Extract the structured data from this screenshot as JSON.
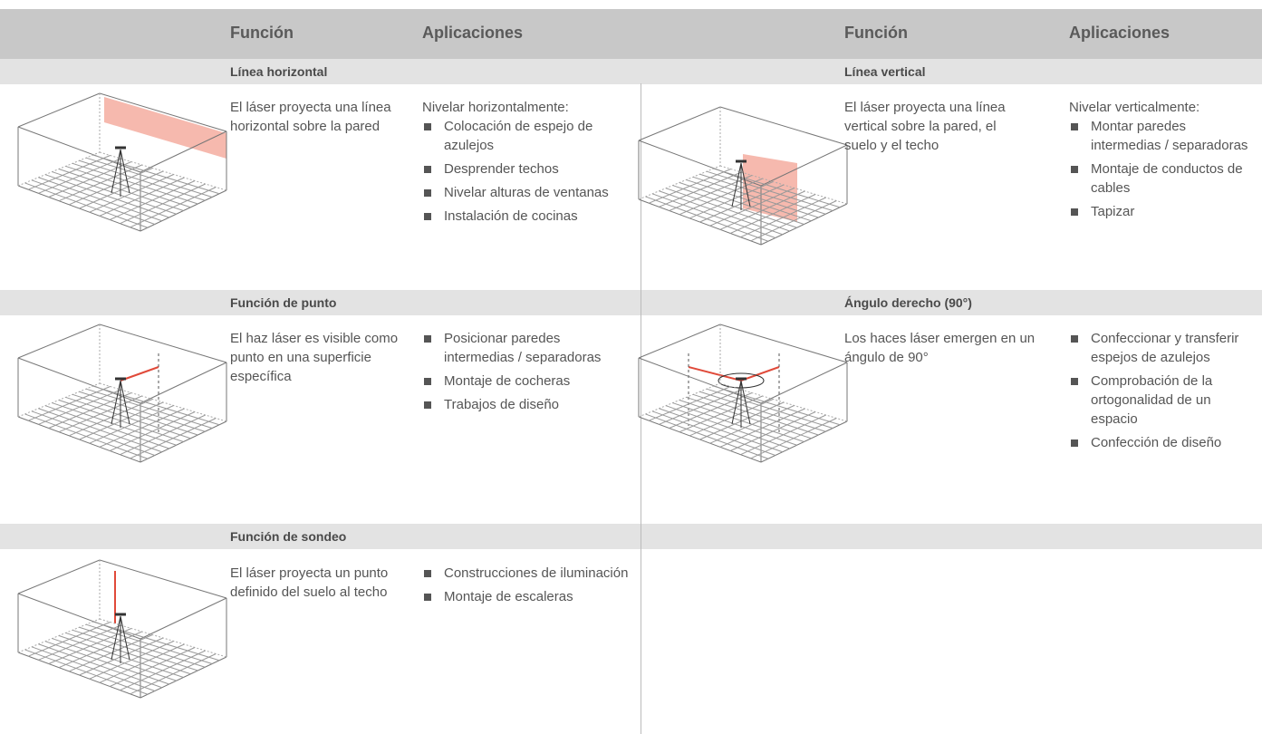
{
  "header": {
    "columns": [
      "Función",
      "Aplicaciones",
      "Función",
      "Aplicaciones"
    ]
  },
  "sections": [
    {
      "title": "Línea horizontal",
      "description": "El láser proyecta una línea horizontal sobre la pared",
      "applications_intro": "Nivelar horizontalmente:",
      "applications": [
        "Colocación de espejo de azulejos",
        "Desprender techos",
        "Nivelar alturas de ventanas",
        "Instalación de cocinas"
      ]
    },
    {
      "title": "Línea vertical",
      "description": "El láser proyecta una línea vertical sobre la pared, el suelo y el techo",
      "applications_intro": "Nivelar verticalmente:",
      "applications": [
        "Montar paredes intermedias / separadoras",
        "Montaje de conductos de cables",
        "Tapizar"
      ]
    },
    {
      "title": "Función de punto",
      "description": "El haz láser es visible como punto en una superficie específica",
      "applications": [
        "Posicionar paredes intermedias / separadoras",
        "Montaje de cocheras",
        "Trabajos de diseño"
      ]
    },
    {
      "title": "Ángulo derecho (90°)",
      "description": "Los haces láser emergen en un ángulo de 90°",
      "applications": [
        "Confeccionar y transferir espejos de azulejos",
        "Comprobación de la ortogonalidad de un espacio",
        "Confección de diseño"
      ]
    },
    {
      "title": "Función de sondeo",
      "description": "El láser proyecta un punto definido del suelo al techo",
      "applications": [
        "Construcciones de iluminación",
        "Montaje de escaleras"
      ]
    }
  ]
}
